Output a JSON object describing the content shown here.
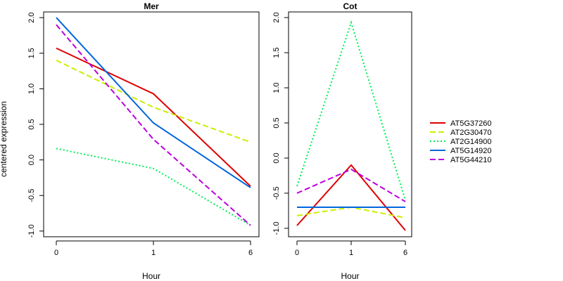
{
  "chart_data": {
    "type": "line",
    "ylabel": "centered expression",
    "x": [
      "0",
      "1",
      "6"
    ],
    "legend_position": "right",
    "series_styles": [
      {
        "name": "AT5G37260",
        "color": "#dd0000",
        "dash": "solid"
      },
      {
        "name": "AT2G30470",
        "color": "#ccee00",
        "dash": "dashed"
      },
      {
        "name": "AT2G14900",
        "color": "#00ee55",
        "dash": "dotted"
      },
      {
        "name": "AT5G14920",
        "color": "#0066dd",
        "dash": "solid"
      },
      {
        "name": "AT5G44210",
        "color": "#bb00dd",
        "dash": "dashed"
      }
    ],
    "panels": [
      {
        "title": "Mer",
        "xlabel": "Hour",
        "ylim": [
          -1.08,
          2.08
        ],
        "yticks": [
          "-1.0",
          "-0.5",
          "0.0",
          "0.5",
          "1.0",
          "1.5",
          "2.0"
        ],
        "series": [
          {
            "name": "AT5G37260",
            "values": [
              1.57,
              0.93,
              -0.37
            ]
          },
          {
            "name": "AT2G30470",
            "values": [
              1.4,
              0.74,
              0.25
            ]
          },
          {
            "name": "AT2G14900",
            "values": [
              0.16,
              -0.12,
              -0.92
            ]
          },
          {
            "name": "AT5G14920",
            "values": [
              2.0,
              0.52,
              -0.39
            ]
          },
          {
            "name": "AT5G44210",
            "values": [
              1.9,
              0.29,
              -0.92
            ]
          }
        ]
      },
      {
        "title": "Cot",
        "xlabel": "Hour",
        "ylim": [
          -1.12,
          2.08
        ],
        "yticks": [
          "-1.0",
          "-0.5",
          "0.0",
          "0.5",
          "1.0",
          "1.5",
          "2.0"
        ],
        "series": [
          {
            "name": "AT5G37260",
            "values": [
              -0.96,
              -0.1,
              -1.03
            ]
          },
          {
            "name": "AT2G30470",
            "values": [
              -0.82,
              -0.7,
              -0.85
            ]
          },
          {
            "name": "AT2G14900",
            "values": [
              -0.4,
              1.93,
              -0.6
            ]
          },
          {
            "name": "AT5G14920",
            "values": [
              -0.7,
              -0.7,
              -0.7
            ]
          },
          {
            "name": "AT5G44210",
            "values": [
              -0.5,
              -0.16,
              -0.62
            ]
          }
        ]
      }
    ]
  }
}
